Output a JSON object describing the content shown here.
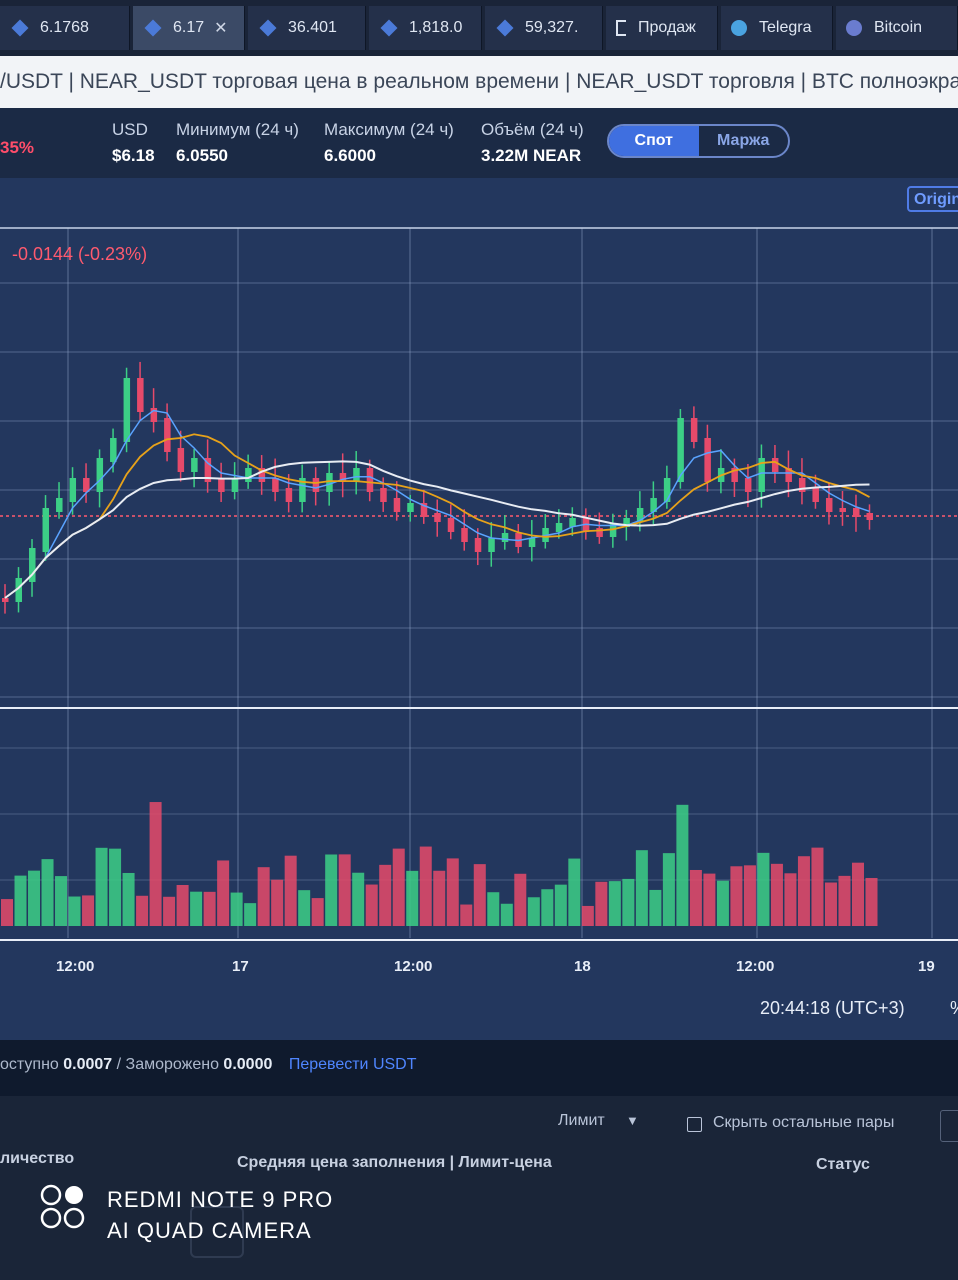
{
  "tabs": [
    {
      "label": "6.1768",
      "icon": "binance-diamond-icon"
    },
    {
      "label": "6.17",
      "icon": "binance-diamond-icon",
      "active": true
    },
    {
      "label": "36.401",
      "icon": "binance-diamond-icon"
    },
    {
      "label": "1,818.0",
      "icon": "binance-diamond-icon"
    },
    {
      "label": "59,327.",
      "icon": "binance-diamond-icon"
    },
    {
      "label": "Продаж",
      "icon": "page-icon"
    },
    {
      "label": "Telegra",
      "icon": "telegram-icon"
    },
    {
      "label": "Bitcoin",
      "icon": "planet-icon"
    }
  ],
  "page_title": "/USDT | NEAR_USDT торговая цена в реальном времени | NEAR_USDT торговля | BTC полноэкран",
  "market": {
    "change_pct": "35%",
    "usd_label": "USD",
    "usd_value": "$6.18",
    "min_label": "Минимум (24 ч)",
    "min_value": "6.0550",
    "max_label": "Максимум (24 ч)",
    "max_value": "6.6000",
    "vol_label": "Объём (24 ч)",
    "vol_value": "3.22M NEAR",
    "spot_label": "Спот",
    "margin_label": "Маржа"
  },
  "chart": {
    "origin_label": "Origin",
    "change_text": "-0.0144 (-0.23%)",
    "x_ticks": [
      "12:00",
      "17",
      "12:00",
      "18",
      "12:00",
      "19"
    ],
    "clock": "20:44:18 (UTC+3)",
    "pct_icon": "%",
    "colors": {
      "up": "#3ccf86",
      "down": "#e64a6a",
      "ma_fast": "#5aa3ff",
      "ma_mid": "#e7a21a",
      "ma_slow": "#e8ecf3",
      "grid": "#8fa2c6"
    }
  },
  "balance": {
    "available_label": "оступно",
    "available_value": "0.0007",
    "frozen_label": "/ Заморожено",
    "frozen_value": "0.0000",
    "transfer_label": "Перевести USDT"
  },
  "orders": {
    "type_select": "Лимит",
    "hide_pairs_label": "Скрыть остальные пары",
    "columns": [
      "личество",
      "Средняя цена заполнения | Лимит-цена",
      "Статус"
    ]
  },
  "watermark": {
    "line1": "REDMI NOTE 9 PRO",
    "line2": "AI QUAD CAMERA"
  }
}
